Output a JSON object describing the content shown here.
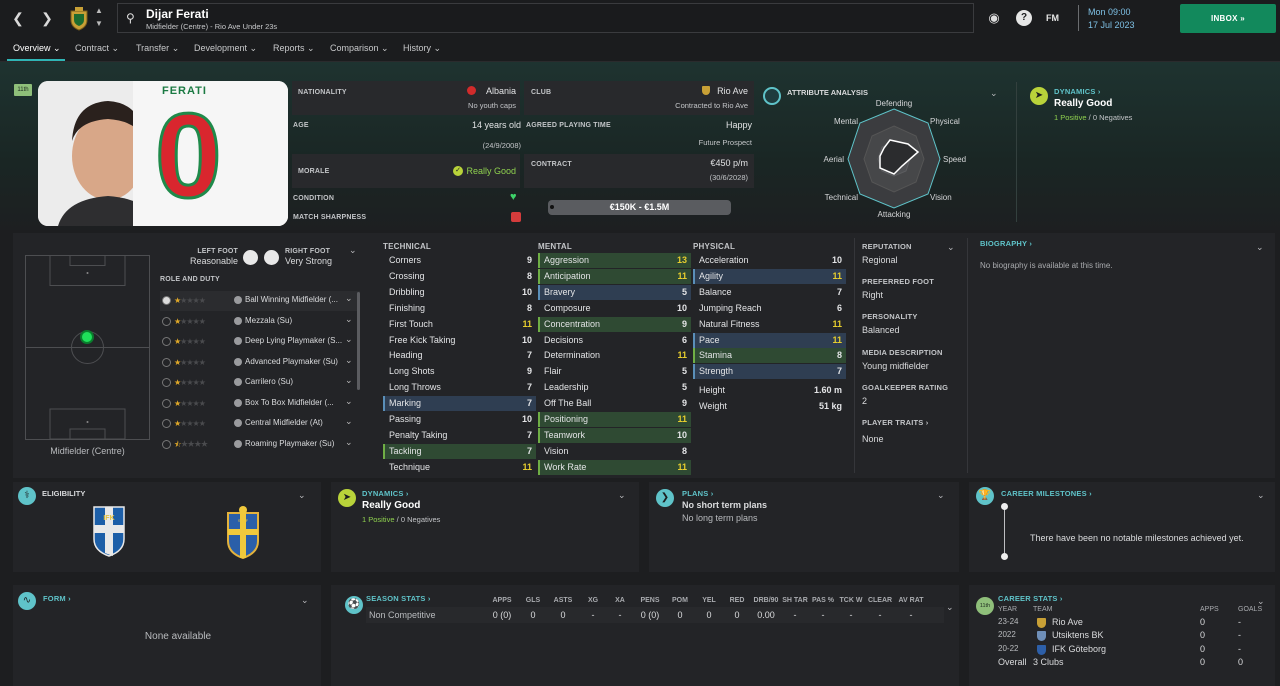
{
  "player": {
    "name": "Dijar Ferati",
    "subtitle": "Midfielder (Centre) - Rio Ave Under 23s",
    "shirt_name": "FERATI",
    "shirt_number": "0",
    "rank_badge": "11th"
  },
  "topbar": {
    "date_line1": "Mon 09:00",
    "date_line2": "17 Jul 2023",
    "fm_label": "FM",
    "inbox_label": "INBOX"
  },
  "tabs": [
    {
      "label": "Overview"
    },
    {
      "label": "Contract"
    },
    {
      "label": "Transfer"
    },
    {
      "label": "Development"
    },
    {
      "label": "Reports"
    },
    {
      "label": "Comparison"
    },
    {
      "label": "History"
    }
  ],
  "info": {
    "nationality_label": "NATIONALITY",
    "nationality": "Albania",
    "youth_caps": "No youth caps",
    "club_label": "CLUB",
    "club": "Rio Ave",
    "club_contract": "Contracted to Rio Ave",
    "age_label": "AGE",
    "age": "14 years old",
    "dob": "(24/9/2008)",
    "apt_label": "AGREED PLAYING TIME",
    "apt": "Happy",
    "apt_sub": "Future Prospect",
    "morale_label": "MORALE",
    "morale": "Really Good",
    "contract_label": "CONTRACT",
    "contract": "€450 p/m",
    "contract_end": "(30/6/2028)",
    "condition_label": "CONDITION",
    "sharpness_label": "MATCH SHARPNESS",
    "value_range": "€150K - €1.5M"
  },
  "attr_analysis": {
    "title": "ATTRIBUTE ANALYSIS",
    "labels": [
      "Defending",
      "Physical",
      "Speed",
      "Vision",
      "Attacking",
      "Technical",
      "Aerial",
      "Mental"
    ]
  },
  "dynamics_top": {
    "title": "DYNAMICS",
    "value": "Really Good",
    "positives": "1 Positive",
    "sep": "/",
    "negatives": "0 Negatives"
  },
  "feet": {
    "left_label": "LEFT FOOT",
    "left": "Reasonable",
    "right_label": "RIGHT FOOT",
    "right": "Very Strong"
  },
  "pitch": {
    "position": "Midfielder (Centre)"
  },
  "roles": {
    "title": "ROLE AND DUTY",
    "items": [
      {
        "label": "Ball Winning Midfielder (...",
        "stars": 1
      },
      {
        "label": "Mezzala (Su)",
        "stars": 1
      },
      {
        "label": "Deep Lying Playmaker (S...",
        "stars": 1
      },
      {
        "label": "Advanced Playmaker (Su)",
        "stars": 1
      },
      {
        "label": "Carrilero (Su)",
        "stars": 1
      },
      {
        "label": "Box To Box Midfielder (...",
        "stars": 1
      },
      {
        "label": "Central Midfielder (At)",
        "stars": 1
      },
      {
        "label": "Roaming Playmaker (Su)",
        "stars": 0.5
      }
    ]
  },
  "technical": {
    "title": "TECHNICAL",
    "items": [
      {
        "name": "Corners",
        "value": "9",
        "hl": ""
      },
      {
        "name": "Crossing",
        "value": "8",
        "hl": ""
      },
      {
        "name": "Dribbling",
        "value": "10",
        "hl": ""
      },
      {
        "name": "Finishing",
        "value": "8",
        "hl": ""
      },
      {
        "name": "First Touch",
        "value": "11",
        "hl": ""
      },
      {
        "name": "Free Kick Taking",
        "value": "10",
        "hl": ""
      },
      {
        "name": "Heading",
        "value": "7",
        "hl": ""
      },
      {
        "name": "Long Shots",
        "value": "9",
        "hl": ""
      },
      {
        "name": "Long Throws",
        "value": "7",
        "hl": ""
      },
      {
        "name": "Marking",
        "value": "7",
        "hl": "blue"
      },
      {
        "name": "Passing",
        "value": "10",
        "hl": ""
      },
      {
        "name": "Penalty Taking",
        "value": "7",
        "hl": ""
      },
      {
        "name": "Tackling",
        "value": "7",
        "hl": "green"
      },
      {
        "name": "Technique",
        "value": "11",
        "hl": ""
      }
    ]
  },
  "mental": {
    "title": "MENTAL",
    "items": [
      {
        "name": "Aggression",
        "value": "13",
        "hl": "green"
      },
      {
        "name": "Anticipation",
        "value": "11",
        "hl": "green"
      },
      {
        "name": "Bravery",
        "value": "5",
        "hl": "blue"
      },
      {
        "name": "Composure",
        "value": "10",
        "hl": ""
      },
      {
        "name": "Concentration",
        "value": "9",
        "hl": "green"
      },
      {
        "name": "Decisions",
        "value": "6",
        "hl": ""
      },
      {
        "name": "Determination",
        "value": "11",
        "hl": ""
      },
      {
        "name": "Flair",
        "value": "5",
        "hl": ""
      },
      {
        "name": "Leadership",
        "value": "5",
        "hl": ""
      },
      {
        "name": "Off The Ball",
        "value": "9",
        "hl": ""
      },
      {
        "name": "Positioning",
        "value": "11",
        "hl": "green"
      },
      {
        "name": "Teamwork",
        "value": "10",
        "hl": "green"
      },
      {
        "name": "Vision",
        "value": "8",
        "hl": ""
      },
      {
        "name": "Work Rate",
        "value": "11",
        "hl": "green"
      }
    ]
  },
  "physical": {
    "title": "PHYSICAL",
    "items": [
      {
        "name": "Acceleration",
        "value": "10",
        "hl": ""
      },
      {
        "name": "Agility",
        "value": "11",
        "hl": "blue"
      },
      {
        "name": "Balance",
        "value": "7",
        "hl": ""
      },
      {
        "name": "Jumping Reach",
        "value": "6",
        "hl": ""
      },
      {
        "name": "Natural Fitness",
        "value": "11",
        "hl": ""
      },
      {
        "name": "Pace",
        "value": "11",
        "hl": "blue"
      },
      {
        "name": "Stamina",
        "value": "8",
        "hl": "green"
      },
      {
        "name": "Strength",
        "value": "7",
        "hl": "blue"
      }
    ],
    "height_label": "Height",
    "height": "1.60 m",
    "weight_label": "Weight",
    "weight": "51 kg"
  },
  "side": {
    "reputation_label": "REPUTATION",
    "reputation": "Regional",
    "foot_label": "PREFERRED FOOT",
    "foot": "Right",
    "personality_label": "PERSONALITY",
    "personality": "Balanced",
    "media_label": "MEDIA DESCRIPTION",
    "media": "Young midfielder",
    "gk_label": "GOALKEEPER RATING",
    "gk": "2",
    "traits_label": "PLAYER TRAITS",
    "traits": "None"
  },
  "biography": {
    "title": "BIOGRAPHY",
    "text": "No biography is available at this time."
  },
  "eligibility": {
    "title": "ELIGIBILITY",
    "badge1": "IFK",
    "badge2": "SVFF"
  },
  "dynamics_bottom": {
    "title": "DYNAMICS",
    "value": "Really Good",
    "positives": "1 Positive",
    "sep": "/",
    "negatives": "0 Negatives"
  },
  "plans": {
    "title": "PLANS",
    "line1": "No short term plans",
    "line2": "No long term plans"
  },
  "milestones": {
    "title": "CAREER MILESTONES",
    "text": "There have been no notable milestones achieved yet."
  },
  "form": {
    "title": "FORM",
    "text": "None available"
  },
  "season_stats": {
    "title": "SEASON STATS",
    "headers": [
      "APPS",
      "GLS",
      "ASTS",
      "XG",
      "XA",
      "PENS",
      "POM",
      "YEL",
      "RED",
      "DRB/90",
      "SH TAR",
      "PAS %",
      "TCK W",
      "CLEAR",
      "AV RAT"
    ],
    "row_label": "Non Competitive",
    "values": [
      "0 (0)",
      "0",
      "0",
      "-",
      "-",
      "0 (0)",
      "0",
      "0",
      "0",
      "0.00",
      "-",
      "-",
      "-",
      "-",
      "-"
    ]
  },
  "career_stats": {
    "title": "CAREER STATS",
    "badge": "11th",
    "h_year": "YEAR",
    "h_team": "TEAM",
    "h_apps": "APPS",
    "h_goals": "GOALS",
    "rows": [
      {
        "year": "23-24",
        "team": "Rio Ave",
        "apps": "0",
        "goals": "-"
      },
      {
        "year": "2022",
        "team": "Utsiktens BK",
        "apps": "0",
        "goals": "-"
      },
      {
        "year": "20-22",
        "team": "IFK Göteborg",
        "apps": "0",
        "goals": "-"
      }
    ],
    "overall_label": "Overall",
    "overall_team": "3 Clubs",
    "overall_apps": "0",
    "overall_goals": "0"
  },
  "colors": {
    "accent": "#5fc3c9",
    "green": "#8fd14f",
    "inbox": "#12895c",
    "star": "#e1a928"
  }
}
